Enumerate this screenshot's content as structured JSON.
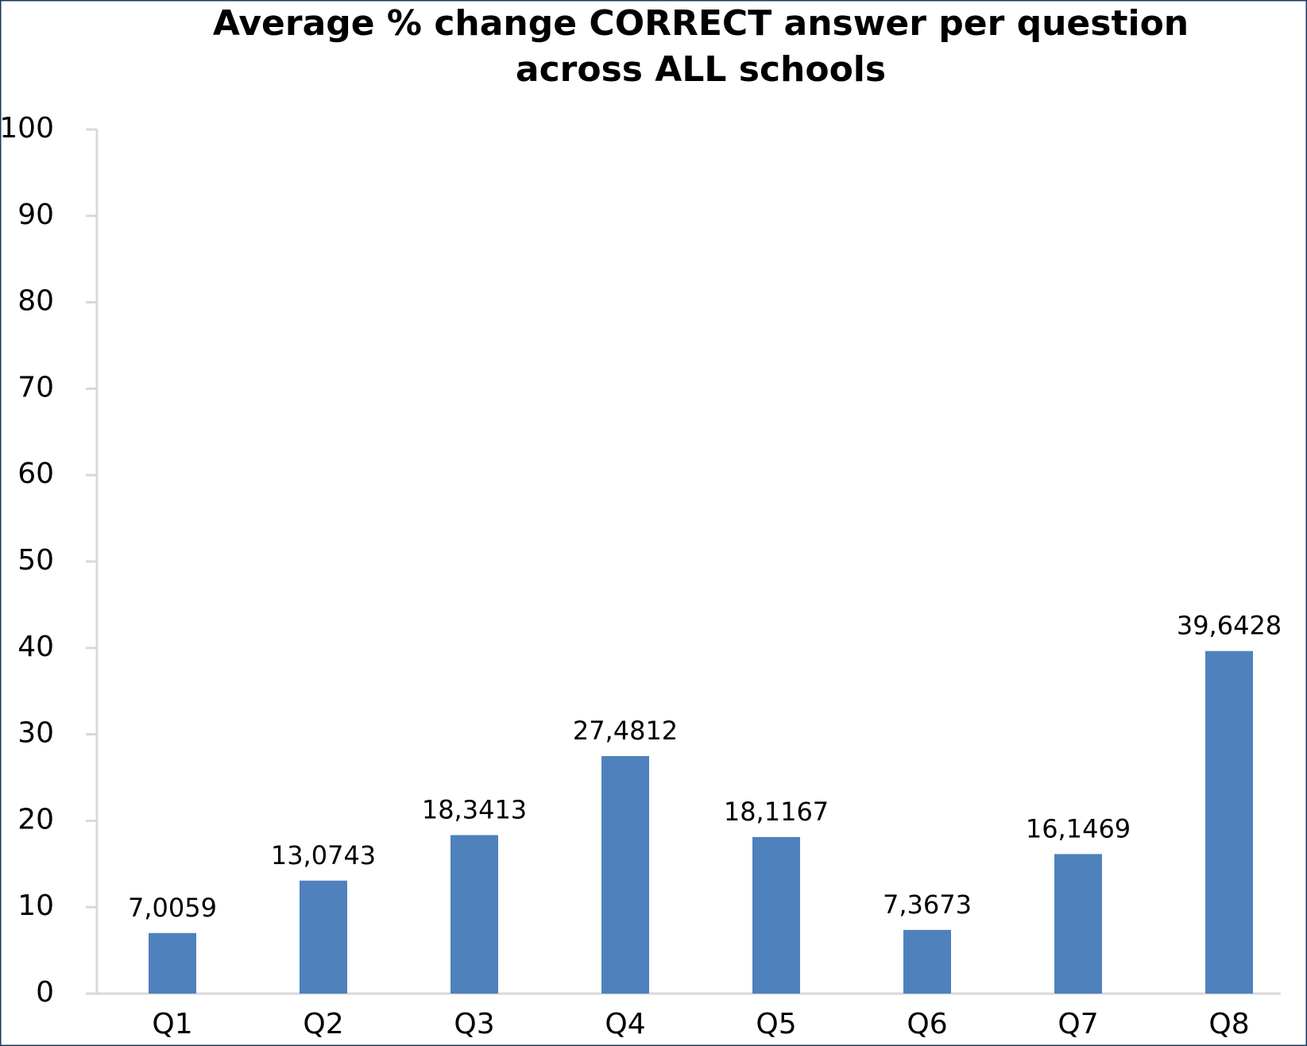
{
  "chart_data": {
    "type": "bar",
    "title": [
      "Average % change CORRECT answer per question",
      "across ALL schools"
    ],
    "categories": [
      "Q1",
      "Q2",
      "Q3",
      "Q4",
      "Q5",
      "Q6",
      "Q7",
      "Q8"
    ],
    "values": [
      7.0059,
      13.0743,
      18.3413,
      27.4812,
      18.1167,
      7.3673,
      16.1469,
      39.6428
    ],
    "value_labels": [
      "7,0059",
      "13,0743",
      "18,3413",
      "27,4812",
      "18,1167",
      "7,3673",
      "16,1469",
      "39,6428"
    ],
    "color": "#4f81bd",
    "ylim": [
      0,
      100
    ],
    "yticks": [
      0,
      10,
      20,
      30,
      40,
      50,
      60,
      70,
      80,
      90,
      100
    ],
    "grid": false
  }
}
